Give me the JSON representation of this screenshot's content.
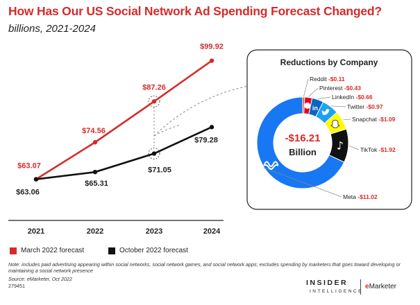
{
  "title": "How Has Our US Social Network Ad Spending Forecast Changed?",
  "subtitle": "billions, 2021-2024",
  "chart_data": [
    {
      "type": "line",
      "x": [
        "2021",
        "2022",
        "2023",
        "2024"
      ],
      "series": [
        {
          "name": "March 2022 forecast",
          "color": "#d62a2a",
          "values": [
            63.07,
            74.56,
            87.26,
            99.92
          ],
          "labels": [
            "$63.07",
            "$74.56",
            "$87.26",
            "$99.92"
          ]
        },
        {
          "name": "October 2022 forecast",
          "color": "#111111",
          "values": [
            63.06,
            65.31,
            71.05,
            79.28
          ],
          "labels": [
            "$63.06",
            "$65.31",
            "$71.05",
            "$79.28"
          ]
        }
      ],
      "ylim": [
        55,
        105
      ],
      "grid": false,
      "legend": "bottom-left"
    },
    {
      "type": "pie",
      "title": "Reductions by Company",
      "center_value": "-$16.21",
      "center_unit": "Billion",
      "slices": [
        {
          "name": "Reddit",
          "label": "-$0.11",
          "value": 0.11,
          "color": "#ff4500",
          "icon": "reddit-icon"
        },
        {
          "name": "Pinterest",
          "label": "-$0.43",
          "value": 0.43,
          "color": "#e60023",
          "icon": "pinterest-icon"
        },
        {
          "name": "LinkedIn",
          "label": "-$0.66",
          "value": 0.66,
          "color": "#0a66c2",
          "icon": "linkedin-icon"
        },
        {
          "name": "Twitter",
          "label": "-$0.97",
          "value": 0.97,
          "color": "#1da1f2",
          "icon": "twitter-icon"
        },
        {
          "name": "Snapchat",
          "label": "-$1.09",
          "value": 1.09,
          "color": "#fffc00",
          "icon": "snapchat-icon"
        },
        {
          "name": "TikTok",
          "label": "-$1.92",
          "value": 1.92,
          "color": "#111111",
          "icon": "tiktok-icon"
        },
        {
          "name": "Meta",
          "label": "-$11.02",
          "value": 11.02,
          "color": "#1877f2",
          "icon": "meta-icon"
        }
      ]
    }
  ],
  "legend": {
    "march": "March 2022 forecast",
    "october": "October 2022 forecast"
  },
  "note": "Note: includes paid advertising appearing within social networks, social network games, and social network apps; excludes spending by marketers that goes toward developing or maintaining a social network presence",
  "source": "Source: eMarketer, Oct 2022",
  "chart_id": "279451",
  "brand": {
    "insider": "INSIDER",
    "intelligence": "INTELLIGENCE",
    "emarketer_e": "e",
    "emarketer_rest": "Marketer"
  }
}
